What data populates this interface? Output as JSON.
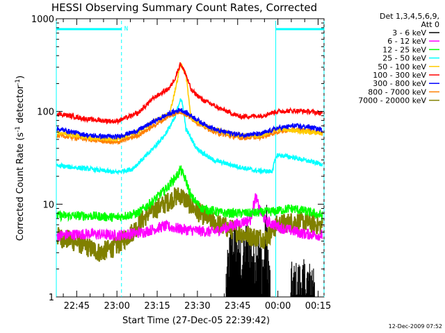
{
  "chart_data": {
    "type": "line",
    "title": "HESSI Observing Summary Count Rates, Corrected",
    "xlabel": "Start Time (27-Dec-05 22:39:42)",
    "ylabel": "Corrected Count Rate (s",
    "ylabel_sup1": "-1",
    "ylabel_mid": " detector",
    "ylabel_sup2": "-1",
    "ylabel_end": ")",
    "y_scale": "log",
    "ylim": [
      1,
      1000
    ],
    "xlim_minutes": [
      -2.3,
      97.5
    ],
    "x_ticks": [
      {
        "label": "22:45",
        "minute": 5.3
      },
      {
        "label": "23:00",
        "minute": 20.3
      },
      {
        "label": "23:15",
        "minute": 35.3
      },
      {
        "label": "23:30",
        "minute": 50.3
      },
      {
        "label": "23:45",
        "minute": 65.3
      },
      {
        "label": "00:00",
        "minute": 80.3
      },
      {
        "label": "00:15",
        "minute": 95.3
      }
    ],
    "y_ticks": [
      {
        "label": "1",
        "value": 1
      },
      {
        "label": "10",
        "value": 10
      },
      {
        "label": "100",
        "value": 100
      },
      {
        "label": "1000",
        "value": 1000
      }
    ],
    "legend_title_1": "Det 1,3,4,5,6,9,",
    "legend_title_2": "Att 0",
    "legend_placement": "right",
    "night_marker_label": "N",
    "night_intervals_minutes": [
      [
        -2.3,
        22.0
      ],
      [
        79.5,
        97.5
      ]
    ],
    "footer_date": "12-Dec-2009 07:52",
    "series": [
      {
        "name": "3 - 6 keV",
        "color": "#000000",
        "points": [
          [
            61,
            1.5
          ],
          [
            63,
            4.5
          ],
          [
            65,
            4.5
          ],
          [
            67,
            2.5
          ],
          [
            69,
            5
          ],
          [
            71,
            3
          ],
          [
            73,
            4
          ],
          [
            75,
            2
          ],
          [
            76,
            8
          ],
          [
            77,
            1.6
          ],
          [
            86,
            1.5
          ],
          [
            90,
            1.6
          ],
          [
            92,
            1.5
          ],
          [
            94,
            1.7
          ]
        ]
      },
      {
        "name": "6 - 12 keV",
        "color": "#ff00ff",
        "points": [
          [
            -2,
            4.6
          ],
          [
            10,
            4.8
          ],
          [
            20,
            4.6
          ],
          [
            30,
            5.0
          ],
          [
            38,
            5.8
          ],
          [
            46,
            5.3
          ],
          [
            56,
            5.0
          ],
          [
            64,
            6.0
          ],
          [
            70,
            6.8
          ],
          [
            72,
            12
          ],
          [
            74,
            8
          ],
          [
            76,
            6.5
          ],
          [
            82,
            5.5
          ],
          [
            90,
            4.8
          ],
          [
            97,
            4.6
          ]
        ]
      },
      {
        "name": "12 - 25 keV",
        "color": "#00ff00",
        "points": [
          [
            -2,
            7.5
          ],
          [
            10,
            7.5
          ],
          [
            20,
            7.2
          ],
          [
            28,
            8
          ],
          [
            34,
            11
          ],
          [
            39,
            15
          ],
          [
            43,
            21
          ],
          [
            44,
            24
          ],
          [
            46,
            18
          ],
          [
            48,
            12
          ],
          [
            52,
            9
          ],
          [
            60,
            8
          ],
          [
            70,
            8
          ],
          [
            78,
            8.3
          ],
          [
            85,
            9
          ],
          [
            90,
            8.5
          ],
          [
            97,
            7.5
          ]
        ]
      },
      {
        "name": "25 - 50 keV",
        "color": "#00ffff",
        "points": [
          [
            -2,
            26
          ],
          [
            10,
            24
          ],
          [
            20,
            22
          ],
          [
            26,
            24
          ],
          [
            32,
            35
          ],
          [
            38,
            55
          ],
          [
            42,
            85
          ],
          [
            44,
            140
          ],
          [
            45,
            110
          ],
          [
            46,
            65
          ],
          [
            50,
            40
          ],
          [
            56,
            30
          ],
          [
            64,
            26
          ],
          [
            72,
            23
          ],
          [
            78,
            22.5
          ],
          [
            80,
            34
          ],
          [
            86,
            32
          ],
          [
            92,
            29
          ],
          [
            97,
            27
          ]
        ]
      },
      {
        "name": "50 - 100 keV",
        "color": "#ffcc00",
        "points": [
          [
            -2,
            60
          ],
          [
            10,
            52
          ],
          [
            20,
            50
          ],
          [
            28,
            60
          ],
          [
            34,
            78
          ],
          [
            40,
            95
          ],
          [
            43,
            230
          ],
          [
            44,
            330
          ],
          [
            46,
            250
          ],
          [
            48,
            85
          ],
          [
            52,
            72
          ],
          [
            58,
            62
          ],
          [
            66,
            55
          ],
          [
            74,
            55
          ],
          [
            80,
            65
          ],
          [
            86,
            62
          ],
          [
            92,
            60
          ],
          [
            97,
            58
          ]
        ]
      },
      {
        "name": "100 - 300 keV",
        "color": "#ff0000",
        "points": [
          [
            -2,
            95
          ],
          [
            10,
            82
          ],
          [
            20,
            78
          ],
          [
            28,
            95
          ],
          [
            34,
            140
          ],
          [
            40,
            180
          ],
          [
            42,
            230
          ],
          [
            44,
            330
          ],
          [
            46,
            250
          ],
          [
            48,
            170
          ],
          [
            52,
            135
          ],
          [
            58,
            110
          ],
          [
            66,
            88
          ],
          [
            74,
            90
          ],
          [
            80,
            100
          ],
          [
            86,
            102
          ],
          [
            92,
            100
          ],
          [
            97,
            95
          ]
        ]
      },
      {
        "name": "300 - 800 keV",
        "color": "#0000ff",
        "points": [
          [
            -2,
            65
          ],
          [
            10,
            55
          ],
          [
            20,
            53
          ],
          [
            28,
            62
          ],
          [
            34,
            78
          ],
          [
            40,
            95
          ],
          [
            44,
            105
          ],
          [
            48,
            90
          ],
          [
            52,
            75
          ],
          [
            58,
            62
          ],
          [
            66,
            56
          ],
          [
            74,
            57
          ],
          [
            80,
            66
          ],
          [
            86,
            70
          ],
          [
            92,
            68
          ],
          [
            97,
            63
          ]
        ]
      },
      {
        "name": "800 - 7000 keV",
        "color": "#ff8000",
        "points": [
          [
            -2,
            55
          ],
          [
            10,
            50
          ],
          [
            20,
            46
          ],
          [
            28,
            55
          ],
          [
            34,
            70
          ],
          [
            40,
            90
          ],
          [
            44,
            100
          ],
          [
            48,
            85
          ],
          [
            52,
            70
          ],
          [
            58,
            58
          ],
          [
            66,
            52
          ],
          [
            74,
            53
          ],
          [
            80,
            60
          ],
          [
            86,
            64
          ],
          [
            92,
            62
          ],
          [
            97,
            58
          ]
        ]
      },
      {
        "name": "7000 - 20000 keV",
        "color": "#808000",
        "points": [
          [
            -2,
            4.5
          ],
          [
            6,
            3.8
          ],
          [
            14,
            3.0
          ],
          [
            20,
            3.5
          ],
          [
            26,
            5
          ],
          [
            32,
            8
          ],
          [
            38,
            10
          ],
          [
            42,
            12
          ],
          [
            44,
            12.5
          ],
          [
            46,
            11
          ],
          [
            50,
            8.5
          ],
          [
            56,
            6.5
          ],
          [
            62,
            5.5
          ],
          [
            70,
            4.5
          ],
          [
            76,
            4.3
          ],
          [
            80,
            6.0
          ],
          [
            86,
            6.5
          ],
          [
            92,
            6.3
          ],
          [
            97,
            5.8
          ]
        ]
      }
    ]
  }
}
